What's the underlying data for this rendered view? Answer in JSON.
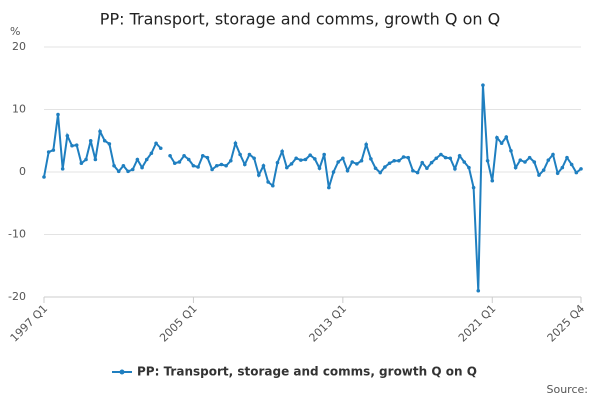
{
  "chart_data": {
    "type": "line",
    "title": "PP: Transport, storage and comms, growth Q on Q",
    "y_label": "%",
    "source": "Source:",
    "categories": [
      "1997 Q1",
      null,
      null,
      null,
      null,
      null,
      null,
      null,
      null,
      null,
      null,
      null,
      null,
      null,
      null,
      null,
      null,
      null,
      null,
      null,
      null,
      null,
      null,
      null,
      null,
      null,
      null,
      null,
      null,
      null,
      null,
      null,
      "2005 Q1",
      null,
      null,
      null,
      null,
      null,
      null,
      null,
      null,
      null,
      null,
      null,
      null,
      null,
      null,
      null,
      null,
      null,
      null,
      null,
      null,
      null,
      null,
      null,
      null,
      null,
      null,
      null,
      null,
      null,
      null,
      null,
      "2013 Q1",
      null,
      null,
      null,
      null,
      null,
      null,
      null,
      null,
      null,
      null,
      null,
      null,
      null,
      null,
      null,
      null,
      null,
      null,
      null,
      null,
      null,
      null,
      null,
      null,
      null,
      null,
      null,
      null,
      null,
      null,
      null,
      "2021 Q1",
      null,
      null,
      null,
      null,
      null,
      null,
      null,
      null,
      null,
      null,
      null,
      null,
      null,
      null,
      null,
      null,
      null,
      null,
      "2025 Q4"
    ],
    "series": [
      {
        "name": "PP: Transport, storage and comms, growth Q on Q",
        "color": "#1f7fc0",
        "values": [
          -0.8,
          3.2,
          3.5,
          9.2,
          0.5,
          5.8,
          4.2,
          4.3,
          1.4,
          2,
          5,
          2,
          6.5,
          5,
          4.5,
          1,
          0.1,
          1,
          0.1,
          0.4,
          2,
          0.7,
          2,
          3,
          4.6,
          3.8,
          null,
          2.6,
          1.4,
          1.6,
          2.6,
          2,
          1,
          0.8,
          2.6,
          2.3,
          0.4,
          1,
          1.2,
          1,
          1.8,
          4.6,
          2.8,
          1.2,
          2.8,
          2.2,
          -0.5,
          1,
          -1.6,
          -2.2,
          1.5,
          3.3,
          0.7,
          1.3,
          2.2,
          1.9,
          2,
          2.7,
          2.1,
          0.6,
          2.8,
          -2.5,
          0,
          1.6,
          2.2,
          0.2,
          1.6,
          1.3,
          1.8,
          4.4,
          2.1,
          0.6,
          -0.1,
          0.8,
          1.4,
          1.8,
          1.8,
          2.4,
          2.3,
          0.2,
          -0.1,
          1.5,
          0.6,
          1.5,
          2.2,
          2.8,
          2.3,
          2.2,
          0.5,
          2.6,
          1.6,
          0.7,
          -2.5,
          -19,
          13.9,
          1.8,
          -1.4,
          5.5,
          4.6,
          5.6,
          3.4,
          0.7,
          1.9,
          1.6,
          2.3,
          1.6,
          -0.5,
          0.3,
          1.9,
          2.8,
          -0.2,
          0.7,
          2.3,
          1.2,
          -0.1,
          0.5
        ]
      }
    ],
    "ylim": [
      -20,
      20
    ],
    "yticks": [
      -20,
      -10,
      0,
      10,
      20
    ],
    "grid": true
  }
}
